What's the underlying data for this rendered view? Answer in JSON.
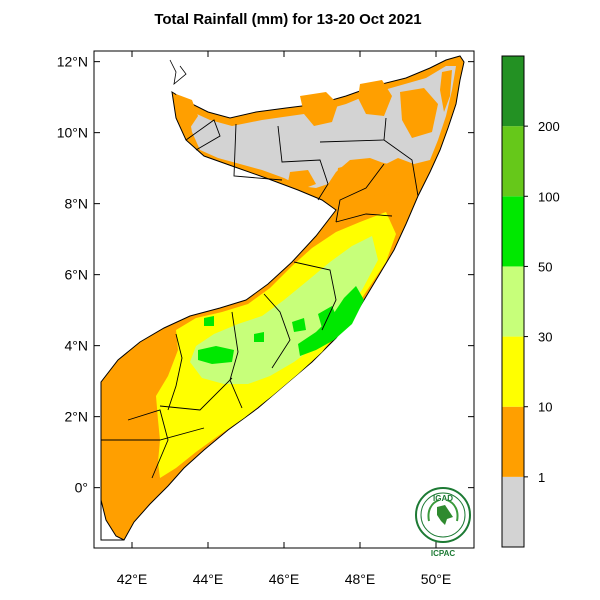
{
  "title": "Total Rainfall (mm) for 13-20 Oct 2021",
  "map": {
    "lat_labels": [
      {
        "lat": 12,
        "text": "12°N"
      },
      {
        "lat": 10,
        "text": "10°N"
      },
      {
        "lat": 8,
        "text": "8°N"
      },
      {
        "lat": 6,
        "text": "6°N"
      },
      {
        "lat": 4,
        "text": "4°N"
      },
      {
        "lat": 2,
        "text": "2°N"
      },
      {
        "lat": 0,
        "text": "0°"
      }
    ],
    "lon_labels": [
      {
        "lon": 42,
        "text": "42°E"
      },
      {
        "lon": 44,
        "text": "44°E"
      },
      {
        "lon": 46,
        "text": "46°E"
      },
      {
        "lon": 48,
        "text": "48°E"
      },
      {
        "lon": 50,
        "text": "50°E"
      }
    ],
    "extent": {
      "lon_min": 41.0,
      "lon_max": 51.0,
      "lat_min": -1.7,
      "lat_max": 12.3
    }
  },
  "legend": {
    "units": "mm",
    "bins": [
      {
        "label": "",
        "color": "#d3d3d3"
      },
      {
        "label": "1",
        "color": "#ff9f00"
      },
      {
        "label": "10",
        "color": "#ffff00"
      },
      {
        "label": "30",
        "color": "#c7ff7a"
      },
      {
        "label": "50",
        "color": "#00e800"
      },
      {
        "label": "100",
        "color": "#66c81a"
      },
      {
        "label": "200",
        "color": "#239123"
      }
    ]
  },
  "logo": {
    "top_text": "IGAD",
    "bottom_text": "ICPAC"
  }
}
